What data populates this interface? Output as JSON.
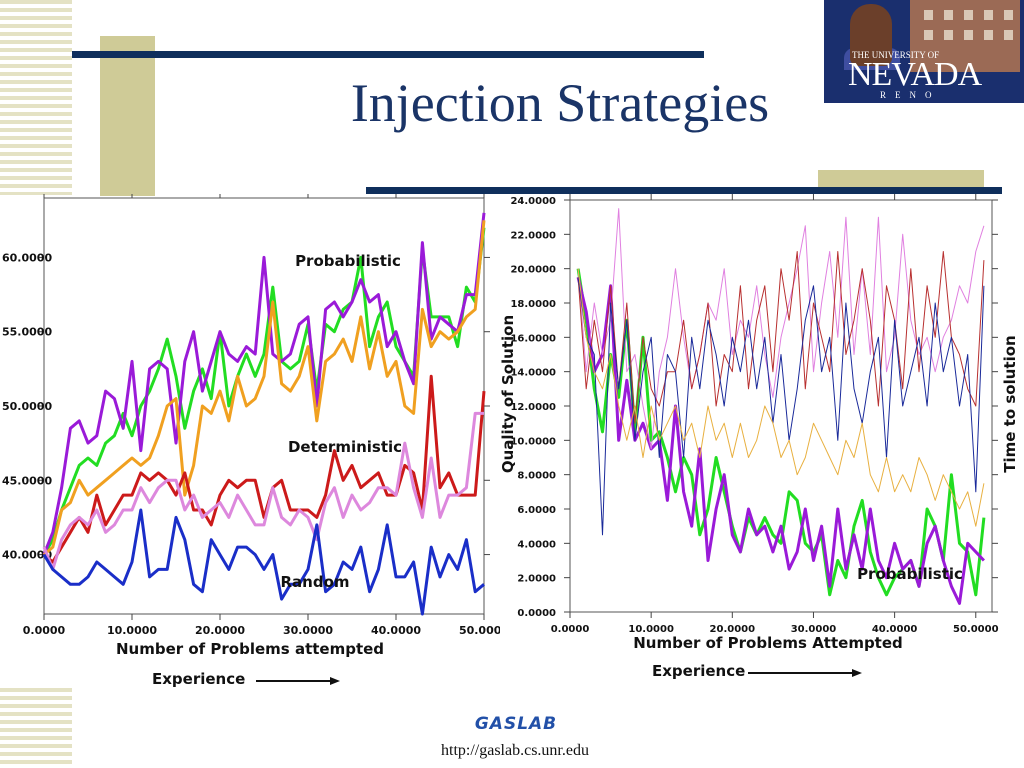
{
  "slide": {
    "title": "Injection Strategies",
    "footer_logo": "GASLAB",
    "footer_url": "http://gaslab.cs.unr.edu"
  },
  "logo": {
    "small_text": "THE UNIVERSITY OF",
    "main_text": "NEVADA",
    "sub_text": "RENO"
  },
  "colors": {
    "navy": "#0f2f5c",
    "tan": "#cfcb97",
    "title": "#1a3467",
    "probabilistic_green": "#22dd22",
    "probabilistic_purple": "#9a1ad8",
    "probabilistic_orange": "#f0a020",
    "deterministic_red": "#cc1a1a",
    "deterministic_pink": "#dd88dd",
    "random_blue": "#1a2ec8"
  },
  "chart_data": [
    {
      "type": "line",
      "xlabel": "Number of Problems attempted",
      "sublabel": "Experience",
      "xlim": [
        0,
        50
      ],
      "ylim": [
        36,
        64
      ],
      "x_ticks": [
        "0.0000",
        "10.0000",
        "20.0000",
        "30.0000",
        "40.0000",
        "50.0000"
      ],
      "y_ticks": [
        "40.0000",
        "45.0000",
        "50.0000",
        "55.0000",
        "60.0000"
      ],
      "annotations": [
        "Probabilistic",
        "Deterministic",
        "Random"
      ],
      "x": [
        0,
        1,
        2,
        3,
        4,
        5,
        6,
        7,
        8,
        9,
        10,
        11,
        12,
        13,
        14,
        15,
        16,
        17,
        18,
        19,
        20,
        21,
        22,
        23,
        24,
        25,
        26,
        27,
        28,
        29,
        30,
        31,
        32,
        33,
        34,
        35,
        36,
        37,
        38,
        39,
        40,
        41,
        42,
        43,
        44,
        45,
        46,
        47,
        48,
        49,
        50
      ],
      "series": [
        {
          "group": "Probabilistic",
          "color": "#22dd22",
          "values": [
            40,
            41,
            43,
            44.5,
            46,
            46.5,
            46,
            47.5,
            48,
            49.5,
            48,
            50,
            51,
            52.5,
            54.5,
            52,
            48.5,
            51,
            52.5,
            50.5,
            55,
            50,
            52,
            53.5,
            52,
            53.5,
            58,
            53,
            52.5,
            53,
            55.5,
            51,
            55.5,
            55,
            56.5,
            57,
            60,
            54,
            56,
            57,
            54,
            53,
            52,
            60.5,
            56,
            56,
            56,
            54,
            58,
            57,
            62
          ]
        },
        {
          "group": "Probabilistic",
          "color": "#9a1ad8",
          "values": [
            40,
            41.5,
            44.5,
            48.5,
            49,
            47.5,
            48,
            51,
            50.5,
            48.5,
            53,
            47,
            52.5,
            53,
            52.5,
            47.5,
            53,
            55,
            51,
            53,
            55,
            53.5,
            53,
            54,
            53.5,
            60,
            53.5,
            53,
            53.5,
            55.5,
            56,
            50,
            56.5,
            57,
            56,
            57,
            58.5,
            57,
            57.5,
            54,
            55,
            53,
            51.5,
            61,
            54.5,
            56,
            55.5,
            55,
            57.5,
            57.5,
            63
          ]
        },
        {
          "group": "Probabilistic",
          "color": "#f0a020",
          "values": [
            40,
            40.5,
            43,
            43.5,
            45,
            44,
            44.5,
            45,
            45.5,
            46,
            46.5,
            46,
            46.5,
            48,
            50,
            50.5,
            44,
            46,
            50,
            49.5,
            51,
            49,
            52,
            50,
            50.5,
            52,
            57,
            51.5,
            51,
            52,
            54,
            49,
            53,
            53.5,
            54.5,
            53,
            56,
            52.5,
            55,
            52,
            53,
            50,
            49.5,
            56.5,
            54,
            55,
            54.5,
            55,
            56,
            56.5,
            62.5
          ]
        },
        {
          "group": "Deterministic",
          "color": "#cc1a1a",
          "values": [
            40,
            39.5,
            40.5,
            41.5,
            42.5,
            41.5,
            44,
            42,
            43,
            44,
            44,
            45.5,
            45,
            45.5,
            45,
            44,
            45.5,
            43,
            43,
            42,
            44,
            45,
            44.5,
            45,
            45,
            42.5,
            44.5,
            45,
            43,
            43,
            43,
            42.5,
            44,
            47,
            45,
            46,
            44.5,
            45,
            45.5,
            44,
            44,
            46,
            45.5,
            43,
            52,
            44.5,
            45.5,
            44,
            44,
            44,
            51
          ]
        },
        {
          "group": "Deterministic",
          "color": "#dd88dd",
          "values": [
            40.5,
            39,
            41,
            42,
            42.5,
            42,
            43,
            41.5,
            42,
            43,
            43,
            44.5,
            43.5,
            44.5,
            45,
            45,
            43,
            44,
            42.5,
            43,
            43.5,
            42.5,
            44,
            43,
            42,
            42,
            44.5,
            42.5,
            42,
            43,
            42.5,
            41,
            43.5,
            44.5,
            42.5,
            44,
            43,
            43.5,
            44.5,
            44.5,
            44,
            47.5,
            44.5,
            42.5,
            46.5,
            42.5,
            44,
            44,
            44.5,
            49.5,
            49.5
          ]
        },
        {
          "group": "Random",
          "color": "#1a2ec8",
          "values": [
            40,
            39,
            38.5,
            38,
            38,
            38.5,
            39.5,
            39,
            38.5,
            38,
            39.5,
            43,
            38.5,
            39,
            39,
            42.5,
            41,
            38,
            37.5,
            41,
            40,
            39,
            40.5,
            40.5,
            40,
            39,
            40,
            37,
            38,
            38,
            39,
            42,
            37.5,
            38,
            39.5,
            39,
            40.5,
            37.5,
            39,
            42,
            38.5,
            38.5,
            39.5,
            36,
            40.5,
            38.5,
            40,
            39,
            41,
            37.5,
            38
          ]
        }
      ]
    },
    {
      "type": "line",
      "xlabel": "Number of Problems Attempted",
      "sublabel": "Experience",
      "ylabel": "Quality of Solution",
      "ylabel_right": "Time to solution",
      "xlim": [
        0,
        52
      ],
      "ylim": [
        0,
        24
      ],
      "x_ticks": [
        "0.0000",
        "10.0000",
        "20.0000",
        "30.0000",
        "40.0000",
        "50.0000"
      ],
      "y_ticks": [
        "0.0000",
        "2.0000",
        "4.0000",
        "6.0000",
        "8.0000",
        "10.0000",
        "12.0000",
        "14.0000",
        "16.0000",
        "18.0000",
        "20.0000",
        "22.0000",
        "24.0000"
      ],
      "annotations": [
        "Probabilistic"
      ],
      "x": [
        1,
        2,
        3,
        4,
        5,
        6,
        7,
        8,
        9,
        10,
        11,
        12,
        13,
        14,
        15,
        16,
        17,
        18,
        19,
        20,
        21,
        22,
        23,
        24,
        25,
        26,
        27,
        28,
        29,
        30,
        31,
        32,
        33,
        34,
        35,
        36,
        37,
        38,
        39,
        40,
        41,
        42,
        43,
        44,
        45,
        46,
        47,
        48,
        49,
        50,
        51
      ],
      "series": [
        {
          "group": "Quality",
          "color": "#22dd22",
          "width": 3,
          "values": [
            20,
            17,
            13,
            10.5,
            15,
            12.5,
            17,
            10.5,
            16,
            10,
            10.5,
            9,
            7,
            9,
            8,
            4.5,
            6,
            9,
            7,
            5,
            3.5,
            5.5,
            4.5,
            5.5,
            4.5,
            4,
            7,
            6.5,
            4,
            3.5,
            4.5,
            1,
            3,
            2,
            5,
            6.5,
            3.5,
            2,
            1,
            2,
            2.5,
            3,
            1.5,
            6,
            5,
            3,
            8,
            4,
            3.5,
            1,
            5.5
          ]
        },
        {
          "group": "Quality",
          "color": "#9a1ad8",
          "width": 3,
          "values": [
            19.5,
            17.5,
            14,
            15,
            19,
            10,
            13.5,
            10,
            11,
            9.5,
            10,
            6.5,
            12,
            7,
            5,
            9.5,
            3,
            6,
            8,
            4.5,
            3.5,
            6,
            4.5,
            5,
            3.5,
            5,
            2.5,
            3.5,
            6,
            3,
            5,
            1.5,
            6,
            2.5,
            4.5,
            2.5,
            6,
            3,
            2,
            4,
            2.5,
            3,
            1.5,
            4,
            5,
            3,
            1.5,
            0.5,
            4,
            3.5,
            3
          ]
        },
        {
          "group": "Time",
          "color": "#e080e0",
          "width": 1,
          "values": [
            20,
            14,
            18,
            15,
            17,
            23.5,
            14,
            15,
            12,
            9.5,
            14,
            16,
            20,
            16,
            13,
            15,
            18,
            17,
            20,
            15,
            17,
            16,
            19,
            15,
            12.5,
            16,
            18,
            20,
            22.5,
            14,
            18,
            21,
            16,
            23,
            15,
            20,
            15,
            23,
            14,
            16,
            22,
            17,
            15,
            16,
            14,
            16,
            17,
            19,
            18,
            21,
            22.5
          ]
        },
        {
          "group": "Time",
          "color": "#b83030",
          "width": 1,
          "values": [
            19.5,
            13,
            17,
            14,
            19,
            13,
            18,
            11,
            16,
            13,
            12,
            14,
            14,
            17,
            13,
            15,
            18,
            12,
            15,
            14,
            19,
            13,
            17,
            19,
            14,
            20,
            17,
            21,
            13,
            18,
            16,
            14,
            21,
            15,
            17,
            20,
            17,
            12,
            19,
            17,
            13,
            20,
            14,
            19,
            16,
            21,
            16,
            15,
            13,
            12,
            20.5
          ]
        },
        {
          "group": "Time",
          "color": "#1a2a9a",
          "width": 1,
          "values": [
            19.5,
            16,
            15,
            4.5,
            18,
            13,
            17,
            10,
            14,
            16,
            9,
            15,
            14,
            9,
            16,
            13,
            17,
            15,
            12,
            16,
            14,
            17,
            13,
            16,
            11,
            15,
            10,
            13,
            17,
            19,
            14,
            16,
            10,
            18,
            13,
            11,
            14,
            16,
            9,
            17,
            12,
            14,
            16,
            12,
            18,
            14,
            16,
            12,
            15,
            7,
            19
          ]
        },
        {
          "group": "Time",
          "color": "#e8b040",
          "width": 1,
          "values": [
            20,
            16,
            14,
            13,
            15,
            12,
            10,
            12,
            9,
            12,
            10,
            11,
            12,
            10,
            11,
            9,
            12,
            10,
            11,
            9,
            11,
            9,
            10,
            12,
            11,
            9,
            10,
            8,
            9,
            11,
            10,
            9,
            8,
            10,
            9,
            11,
            8,
            7,
            9,
            7,
            8,
            7,
            9,
            8,
            6.5,
            8,
            7,
            6,
            7,
            5,
            7.5
          ]
        }
      ]
    }
  ]
}
